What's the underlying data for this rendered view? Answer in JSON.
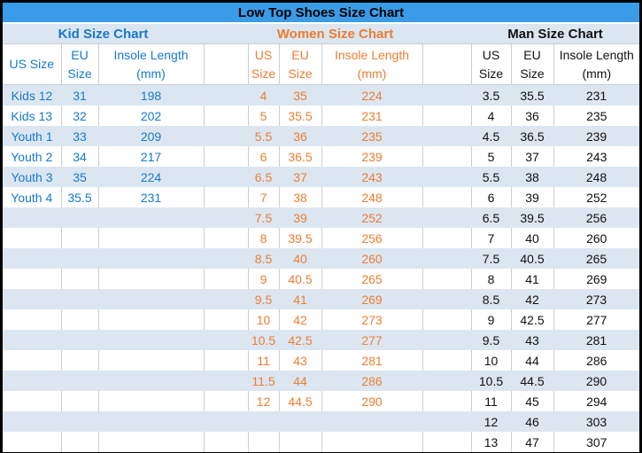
{
  "chart_data": {
    "type": "table",
    "title": "Low Top Shoes Size Chart",
    "tables": [
      {
        "name": "Kid Size Chart",
        "accent_color": "#1779CE",
        "columns": [
          "US Size",
          "EU Size",
          "Insole Length (mm)"
        ],
        "rows": [
          [
            "Kids 12",
            "31",
            "198"
          ],
          [
            "Kids 13",
            "32",
            "202"
          ],
          [
            "Youth 1",
            "33",
            "209"
          ],
          [
            "Youth 2",
            "34",
            "217"
          ],
          [
            "Youth 3",
            "35",
            "224"
          ],
          [
            "Youth 4",
            "35.5",
            "231"
          ]
        ]
      },
      {
        "name": "Women Size Chart",
        "accent_color": "#ED7D31",
        "columns": [
          "US Size",
          "EU Size",
          "Insole Length (mm)"
        ],
        "rows": [
          [
            "4",
            "35",
            "224"
          ],
          [
            "5",
            "35.5",
            "231"
          ],
          [
            "5.5",
            "36",
            "235"
          ],
          [
            "6",
            "36.5",
            "239"
          ],
          [
            "6.5",
            "37",
            "243"
          ],
          [
            "7",
            "38",
            "248"
          ],
          [
            "7.5",
            "39",
            "252"
          ],
          [
            "8",
            "39.5",
            "256"
          ],
          [
            "8.5",
            "40",
            "260"
          ],
          [
            "9",
            "40.5",
            "265"
          ],
          [
            "9.5",
            "41",
            "269"
          ],
          [
            "10",
            "42",
            "273"
          ],
          [
            "10.5",
            "42.5",
            "277"
          ],
          [
            "11",
            "43",
            "281"
          ],
          [
            "11.5",
            "44",
            "286"
          ],
          [
            "12",
            "44.5",
            "290"
          ]
        ]
      },
      {
        "name": "Man Size Chart",
        "accent_color": "#111111",
        "columns": [
          "US Size",
          "EU Size",
          "Insole Length (mm)"
        ],
        "rows": [
          [
            "3.5",
            "35.5",
            "231"
          ],
          [
            "4",
            "36",
            "235"
          ],
          [
            "4.5",
            "36.5",
            "239"
          ],
          [
            "5",
            "37",
            "243"
          ],
          [
            "5.5",
            "38",
            "248"
          ],
          [
            "6",
            "39",
            "252"
          ],
          [
            "6.5",
            "39.5",
            "256"
          ],
          [
            "7",
            "40",
            "260"
          ],
          [
            "7.5",
            "40.5",
            "265"
          ],
          [
            "8",
            "41",
            "269"
          ],
          [
            "8.5",
            "42",
            "273"
          ],
          [
            "9",
            "42.5",
            "277"
          ],
          [
            "9.5",
            "43",
            "281"
          ],
          [
            "10",
            "44",
            "286"
          ],
          [
            "10.5",
            "44.5",
            "290"
          ],
          [
            "11",
            "45",
            "294"
          ],
          [
            "12",
            "46",
            "303"
          ],
          [
            "13",
            "47",
            "307"
          ]
        ]
      }
    ]
  },
  "colors": {
    "title_bg": "#3A9CE8",
    "band_bg": "#DCE6F1",
    "kid_text": "#1779CE",
    "women_text": "#ED7D31",
    "man_text": "#111111",
    "grid_line": "#C9CFD6",
    "title_text": "#000000",
    "outer_border": "#000000"
  }
}
